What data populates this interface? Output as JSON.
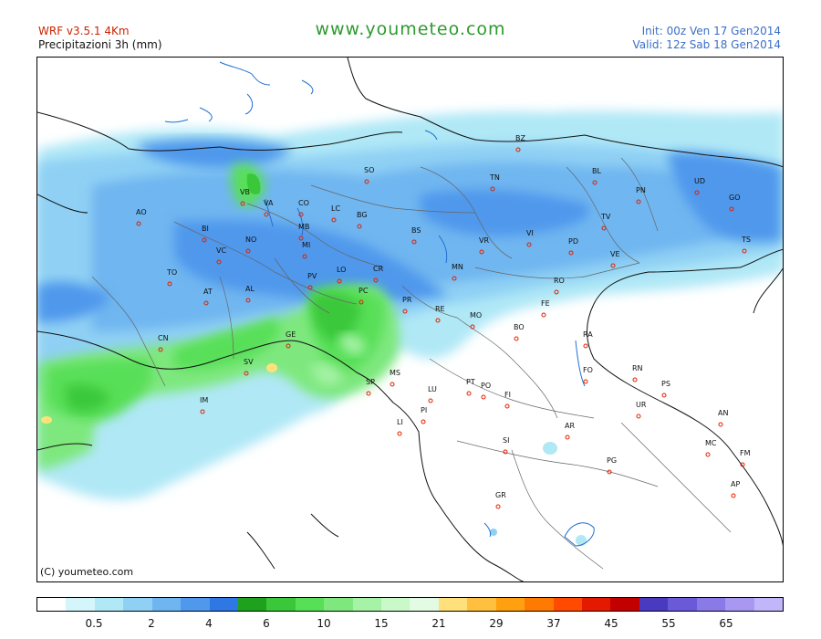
{
  "header": {
    "model": "WRF v3.5.1  4Km",
    "variable": "Precipitazioni 3h  (mm)",
    "site": "www.youmeteo.com",
    "init": "Init: 00z Ven  17 Gen2014",
    "valid": "Valid: 12z Sab  18 Gen2014"
  },
  "copyright": "(C) youmeteo.com",
  "legend": {
    "colors": [
      "#ffffff",
      "#d4f5fa",
      "#b0e8f6",
      "#8fd0f4",
      "#6fb6f0",
      "#4f98ec",
      "#2f78e4",
      "#1ea21e",
      "#3ac83a",
      "#58df58",
      "#7ee87e",
      "#a6f2a6",
      "#c9f8c9",
      "#e3fbe3",
      "#ffe07a",
      "#ffc040",
      "#ffa010",
      "#ff7a00",
      "#ff4a00",
      "#e41a00",
      "#c20000",
      "#4a3ac0",
      "#6a5ad8",
      "#8a7ae8",
      "#a898f2",
      "#c2b6fa"
    ],
    "labels": [
      "0.5",
      "2",
      "4",
      "6",
      "10",
      "15",
      "21",
      "29",
      "37",
      "45",
      "55",
      "65"
    ]
  },
  "cities": [
    "AO",
    "VB",
    "VA",
    "CO",
    "LC",
    "SO",
    "BG",
    "MB",
    "BI",
    "NO",
    "MI",
    "VC",
    "TO",
    "AT",
    "AL",
    "PV",
    "LO",
    "CR",
    "PC",
    "BS",
    "BZ",
    "TN",
    "VR",
    "VI",
    "BL",
    "PN",
    "UD",
    "GO",
    "TS",
    "TV",
    "PD",
    "VE",
    "RO",
    "MN",
    "FE",
    "PR",
    "RE",
    "MO",
    "BO",
    "RA",
    "FO",
    "RN",
    "PS",
    "GE",
    "SV",
    "IM",
    "CN",
    "SP",
    "MS",
    "LU",
    "PT",
    "PO",
    "FI",
    "PI",
    "LI",
    "AR",
    "SI",
    "UR",
    "AN",
    "MC",
    "FM",
    "AP",
    "PG",
    "GR"
  ],
  "icons": {
    "city-marker": "circle"
  }
}
